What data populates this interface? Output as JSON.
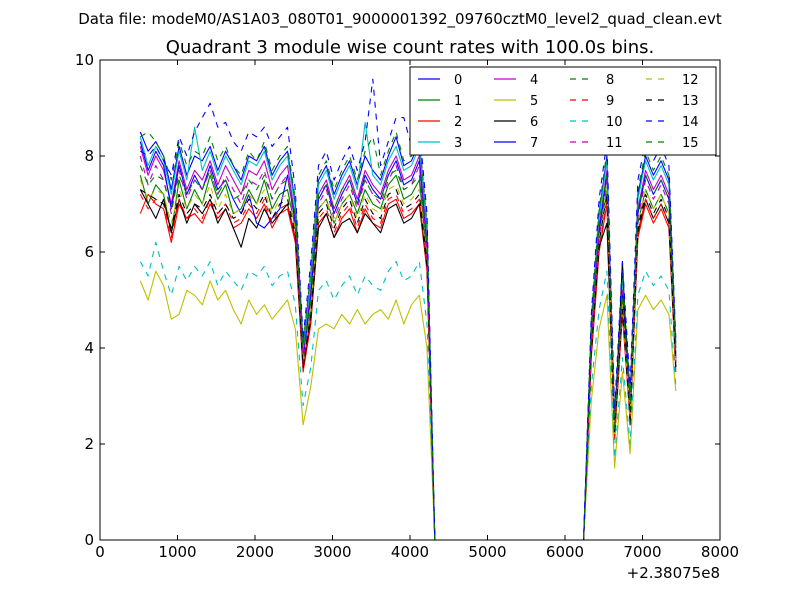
{
  "figure": {
    "suptitle": "Data file: modeM0/AS1A03_080T01_9000001392_09760cztM0_level2_quad_clean.evt"
  },
  "chart_data": {
    "type": "line",
    "title": "Quadrant 3 module wise count rates with 100.0s bins.",
    "xlabel": "",
    "ylabel": "",
    "xlim": [
      0,
      8000
    ],
    "ylim": [
      0,
      10
    ],
    "x_offset_label": "+2.38075e8",
    "x_ticks": [
      0,
      1000,
      2000,
      3000,
      4000,
      5000,
      6000,
      7000,
      8000
    ],
    "x_tick_labels": [
      "0",
      "1000",
      "2000",
      "3000",
      "4000",
      "5000",
      "6000",
      "7000",
      "8000"
    ],
    "y_ticks": [
      0,
      2,
      4,
      6,
      8,
      10
    ],
    "y_tick_labels": [
      "0",
      "2",
      "4",
      "6",
      "8",
      "10"
    ],
    "grid": false,
    "legend_position": "top-right",
    "legend_columns": 4,
    "x": [
      520,
      620,
      720,
      820,
      920,
      1020,
      1120,
      1220,
      1320,
      1420,
      1520,
      1620,
      1720,
      1820,
      1920,
      2020,
      2120,
      2220,
      2320,
      2420,
      2520,
      2620,
      2720,
      2820,
      2920,
      3020,
      3120,
      3220,
      3320,
      3420,
      3520,
      3620,
      3720,
      3820,
      3920,
      4020,
      4120,
      4220,
      4320,
      4400,
      5000,
      6000,
      6240,
      6340,
      6440,
      6540,
      6640,
      6740,
      6840,
      6940,
      7040,
      7140,
      7240,
      7340,
      7430
    ],
    "series": [
      {
        "name": "0",
        "color": "#0000ff",
        "dash": "solid",
        "values": [
          8.5,
          8.1,
          8.3,
          8.0,
          7.3,
          8.2,
          7.6,
          8.0,
          7.9,
          8.2,
          7.7,
          8.1,
          7.8,
          7.5,
          8.0,
          7.9,
          8.2,
          7.6,
          7.9,
          8.1,
          7.0,
          4.0,
          5.5,
          7.5,
          7.8,
          7.2,
          7.6,
          7.9,
          7.4,
          8.0,
          7.7,
          7.5,
          8.0,
          8.4,
          7.8,
          7.9,
          8.3,
          6.5,
          0.0,
          0.0,
          0.0,
          0.0,
          0.0,
          4.5,
          6.8,
          8.0,
          2.5,
          5.5,
          3.0,
          7.2,
          8.0,
          7.6,
          7.9,
          7.5,
          4.0
        ]
      },
      {
        "name": "1",
        "color": "#008000",
        "dash": "solid",
        "values": [
          7.6,
          7.0,
          7.4,
          7.2,
          6.4,
          7.5,
          6.9,
          7.3,
          7.0,
          7.6,
          7.1,
          7.4,
          6.8,
          6.9,
          7.3,
          7.0,
          7.5,
          6.9,
          7.2,
          7.3,
          6.5,
          3.6,
          4.8,
          6.9,
          7.1,
          6.6,
          7.0,
          7.2,
          6.8,
          7.3,
          7.0,
          6.9,
          7.4,
          7.6,
          7.1,
          7.2,
          7.5,
          5.9,
          0.0,
          0.0,
          0.0,
          0.0,
          0.0,
          4.0,
          6.3,
          7.3,
          2.2,
          4.9,
          2.6,
          6.6,
          7.3,
          6.9,
          7.2,
          6.8,
          3.6
        ]
      },
      {
        "name": "2",
        "color": "#ff0000",
        "dash": "solid",
        "values": [
          6.8,
          7.2,
          7.0,
          6.9,
          6.2,
          7.0,
          6.7,
          6.8,
          6.6,
          7.0,
          6.7,
          6.9,
          6.5,
          6.6,
          6.9,
          6.7,
          7.0,
          6.5,
          6.8,
          6.9,
          6.2,
          3.5,
          4.5,
          6.6,
          6.8,
          6.3,
          6.7,
          6.9,
          6.4,
          6.9,
          6.6,
          6.5,
          7.0,
          7.1,
          6.7,
          6.8,
          7.0,
          5.6,
          0.0,
          0.0,
          0.0,
          0.0,
          0.0,
          3.8,
          6.0,
          7.0,
          2.1,
          4.7,
          2.5,
          6.3,
          7.0,
          6.6,
          6.9,
          6.5,
          3.5
        ]
      },
      {
        "name": "3",
        "color": "#00bfbf",
        "dash": "solid",
        "values": [
          8.4,
          7.8,
          8.2,
          7.9,
          7.2,
          8.1,
          7.5,
          8.6,
          7.7,
          8.1,
          7.6,
          8.0,
          7.7,
          7.4,
          7.9,
          7.8,
          8.1,
          7.5,
          7.8,
          8.0,
          6.9,
          3.9,
          5.4,
          7.4,
          7.7,
          7.1,
          7.5,
          7.8,
          7.3,
          8.7,
          7.6,
          7.4,
          7.9,
          8.2,
          7.7,
          7.8,
          8.2,
          6.4,
          0.0,
          0.0,
          0.0,
          0.0,
          0.0,
          4.4,
          6.7,
          7.9,
          2.4,
          5.4,
          2.9,
          7.1,
          7.9,
          7.5,
          7.8,
          7.4,
          3.9
        ]
      },
      {
        "name": "4",
        "color": "#bf00bf",
        "dash": "solid",
        "values": [
          8.2,
          7.6,
          8.0,
          7.7,
          7.0,
          7.9,
          7.3,
          7.7,
          7.5,
          7.9,
          7.4,
          7.8,
          7.5,
          7.2,
          7.7,
          7.6,
          7.9,
          7.3,
          7.6,
          7.8,
          6.7,
          3.8,
          5.2,
          7.2,
          7.5,
          6.9,
          7.3,
          7.6,
          7.1,
          7.7,
          7.4,
          7.2,
          7.7,
          8.0,
          7.5,
          7.6,
          8.0,
          6.2,
          0.0,
          0.0,
          0.0,
          0.0,
          0.0,
          4.3,
          6.5,
          7.7,
          2.3,
          5.2,
          2.8,
          6.9,
          7.7,
          7.3,
          7.6,
          7.2,
          3.8
        ]
      },
      {
        "name": "5",
        "color": "#bfbf00",
        "dash": "solid",
        "values": [
          5.4,
          5.0,
          5.6,
          5.3,
          4.6,
          4.7,
          5.2,
          5.1,
          4.9,
          5.4,
          5.0,
          5.2,
          4.8,
          4.5,
          5.0,
          4.7,
          4.9,
          4.6,
          4.8,
          5.0,
          4.4,
          2.4,
          3.2,
          4.4,
          4.5,
          4.4,
          4.7,
          4.5,
          4.8,
          4.5,
          4.7,
          4.8,
          4.6,
          5.0,
          4.5,
          4.9,
          5.1,
          4.0,
          0.0,
          0.0,
          0.0,
          0.0,
          0.0,
          2.9,
          4.4,
          5.1,
          1.5,
          3.5,
          1.8,
          4.8,
          5.1,
          4.8,
          5.0,
          4.7,
          3.1
        ]
      },
      {
        "name": "6",
        "color": "#000000",
        "dash": "solid",
        "values": [
          7.3,
          7.0,
          6.7,
          7.1,
          6.4,
          7.1,
          6.6,
          7.0,
          6.8,
          7.1,
          6.6,
          6.9,
          6.5,
          6.1,
          6.7,
          6.5,
          6.9,
          6.6,
          6.8,
          7.0,
          6.3,
          3.6,
          4.6,
          6.5,
          6.8,
          6.3,
          6.6,
          6.7,
          6.4,
          6.8,
          6.6,
          6.4,
          6.9,
          7.0,
          6.6,
          6.7,
          7.0,
          5.7,
          0.0,
          0.0,
          0.0,
          0.0,
          0.0,
          3.9,
          6.1,
          6.6,
          2.2,
          5.8,
          2.4,
          6.4,
          7.1,
          6.7,
          7.0,
          6.6,
          3.7
        ]
      },
      {
        "name": "7",
        "color": "#0000ff",
        "dash": "solid",
        "values": [
          8.3,
          7.7,
          8.1,
          7.8,
          6.9,
          7.8,
          7.2,
          7.6,
          7.3,
          7.8,
          7.3,
          7.5,
          7.1,
          6.8,
          7.2,
          6.6,
          6.5,
          6.7,
          6.9,
          7.6,
          6.6,
          3.7,
          5.1,
          7.1,
          7.4,
          6.8,
          7.2,
          7.5,
          7.0,
          7.6,
          7.3,
          7.1,
          7.6,
          7.9,
          7.4,
          7.5,
          7.9,
          6.1,
          0.0,
          0.0,
          0.0,
          0.0,
          0.0,
          4.2,
          6.4,
          7.6,
          2.3,
          5.1,
          2.7,
          6.8,
          7.6,
          7.2,
          7.5,
          7.1,
          3.8
        ]
      },
      {
        "name": "8",
        "color": "#008000",
        "dash": "dashed",
        "values": [
          8.4,
          8.5,
          8.3,
          8.0,
          7.5,
          8.3,
          7.8,
          8.1,
          8.0,
          8.4,
          7.9,
          8.2,
          7.8,
          7.6,
          8.1,
          7.9,
          8.3,
          7.7,
          8.0,
          8.2,
          7.1,
          4.1,
          5.6,
          7.6,
          7.9,
          7.3,
          7.7,
          8.0,
          7.5,
          8.1,
          8.4,
          7.6,
          8.1,
          8.5,
          7.9,
          8.0,
          8.4,
          6.6,
          0.0,
          0.0,
          0.0,
          0.0,
          0.0,
          4.6,
          6.9,
          8.1,
          2.6,
          5.6,
          3.1,
          7.3,
          8.1,
          7.7,
          8.0,
          7.6,
          4.1
        ]
      },
      {
        "name": "9",
        "color": "#ff0000",
        "dash": "dashed",
        "values": [
          7.2,
          6.9,
          7.1,
          7.0,
          6.3,
          7.1,
          6.7,
          6.9,
          6.7,
          7.1,
          6.8,
          7.0,
          6.6,
          6.7,
          7.0,
          6.8,
          7.1,
          6.6,
          6.9,
          7.0,
          6.3,
          3.6,
          4.6,
          6.7,
          6.9,
          6.4,
          6.8,
          7.0,
          6.5,
          7.0,
          6.7,
          6.6,
          7.1,
          7.2,
          6.8,
          6.9,
          7.1,
          5.7,
          0.0,
          0.0,
          0.0,
          0.0,
          0.0,
          3.9,
          6.1,
          7.1,
          2.1,
          4.8,
          2.5,
          6.4,
          7.1,
          6.7,
          7.0,
          6.6,
          3.6
        ]
      },
      {
        "name": "10",
        "color": "#00bfbf",
        "dash": "dashed",
        "values": [
          5.8,
          5.5,
          6.2,
          5.6,
          5.1,
          5.7,
          5.4,
          5.7,
          5.5,
          5.8,
          5.3,
          5.6,
          5.4,
          5.2,
          5.6,
          5.5,
          5.7,
          5.3,
          5.5,
          5.6,
          4.9,
          2.8,
          3.6,
          5.2,
          5.4,
          5.0,
          5.3,
          5.5,
          5.1,
          5.5,
          5.3,
          5.2,
          5.6,
          5.8,
          5.4,
          5.5,
          5.8,
          4.5,
          0.0,
          0.0,
          0.0,
          0.0,
          0.0,
          3.2,
          4.8,
          5.6,
          1.7,
          3.8,
          2.0,
          5.1,
          5.6,
          5.3,
          5.5,
          5.2,
          3.2
        ]
      },
      {
        "name": "11",
        "color": "#bf00bf",
        "dash": "dashed",
        "values": [
          8.0,
          7.4,
          7.8,
          7.5,
          6.8,
          7.7,
          7.1,
          7.5,
          7.3,
          7.7,
          7.2,
          7.6,
          7.3,
          7.0,
          7.5,
          7.4,
          7.7,
          7.1,
          7.4,
          7.6,
          6.5,
          3.7,
          5.0,
          7.0,
          7.3,
          6.7,
          7.1,
          7.4,
          6.9,
          7.5,
          7.2,
          7.0,
          7.5,
          7.8,
          7.3,
          7.4,
          7.8,
          6.0,
          0.0,
          0.0,
          0.0,
          0.0,
          0.0,
          4.2,
          6.3,
          7.5,
          2.3,
          5.0,
          2.7,
          6.7,
          7.5,
          7.1,
          7.4,
          7.0,
          3.7
        ]
      },
      {
        "name": "12",
        "color": "#bfbf00",
        "dash": "dashed",
        "values": [
          7.5,
          7.1,
          7.3,
          7.2,
          6.6,
          7.3,
          6.9,
          7.2,
          7.0,
          7.4,
          6.9,
          7.2,
          6.8,
          6.9,
          7.2,
          7.0,
          7.3,
          6.8,
          7.1,
          7.2,
          6.5,
          3.7,
          4.8,
          6.9,
          7.1,
          6.6,
          7.0,
          7.2,
          6.7,
          7.2,
          6.9,
          6.8,
          7.3,
          7.4,
          7.0,
          7.1,
          7.3,
          5.9,
          0.0,
          0.0,
          0.0,
          0.0,
          0.0,
          4.0,
          6.3,
          7.3,
          2.2,
          4.9,
          2.6,
          6.6,
          7.3,
          6.9,
          7.2,
          6.8,
          3.7
        ]
      },
      {
        "name": "13",
        "color": "#000000",
        "dash": "dashed",
        "values": [
          7.3,
          7.2,
          7.1,
          7.0,
          6.5,
          7.2,
          6.8,
          7.0,
          6.9,
          7.2,
          6.8,
          7.0,
          6.7,
          6.8,
          7.1,
          6.9,
          7.2,
          6.7,
          7.0,
          7.1,
          6.4,
          3.6,
          4.7,
          6.8,
          7.0,
          6.5,
          6.9,
          7.1,
          6.6,
          7.1,
          6.8,
          6.7,
          7.2,
          7.3,
          6.9,
          7.0,
          7.2,
          5.8,
          0.0,
          0.0,
          0.0,
          0.0,
          0.0,
          3.9,
          6.2,
          7.2,
          2.2,
          4.8,
          2.5,
          6.5,
          7.2,
          6.8,
          7.1,
          6.7,
          3.6
        ]
      },
      {
        "name": "14",
        "color": "#0000ff",
        "dash": "dashed",
        "values": [
          8.1,
          8.0,
          8.2,
          7.9,
          7.6,
          8.4,
          8.0,
          8.5,
          8.8,
          9.1,
          8.6,
          8.7,
          8.3,
          8.1,
          8.5,
          8.4,
          8.6,
          8.2,
          8.4,
          8.6,
          7.3,
          4.2,
          5.8,
          7.8,
          8.1,
          7.5,
          7.9,
          8.2,
          7.7,
          8.3,
          9.6,
          7.8,
          8.3,
          8.8,
          8.8,
          8.2,
          8.6,
          6.8,
          0.0,
          0.0,
          0.0,
          0.0,
          0.0,
          4.7,
          7.1,
          8.3,
          2.7,
          5.8,
          3.2,
          7.5,
          8.3,
          7.9,
          8.2,
          7.8,
          4.2
        ]
      },
      {
        "name": "15",
        "color": "#008000",
        "dash": "dashed",
        "values": [
          7.8,
          7.4,
          7.6,
          7.5,
          6.9,
          7.6,
          7.2,
          7.5,
          7.3,
          7.7,
          7.2,
          7.5,
          7.1,
          7.2,
          7.5,
          7.3,
          7.6,
          7.1,
          7.4,
          7.5,
          6.8,
          3.9,
          5.0,
          7.2,
          7.4,
          6.9,
          7.3,
          7.5,
          7.0,
          7.5,
          7.2,
          7.1,
          7.6,
          7.7,
          7.3,
          7.4,
          7.6,
          6.2,
          0.0,
          0.0,
          0.0,
          0.0,
          0.0,
          4.2,
          6.6,
          7.6,
          2.3,
          5.1,
          2.7,
          6.9,
          7.6,
          7.2,
          7.5,
          7.1,
          3.8
        ]
      }
    ]
  }
}
